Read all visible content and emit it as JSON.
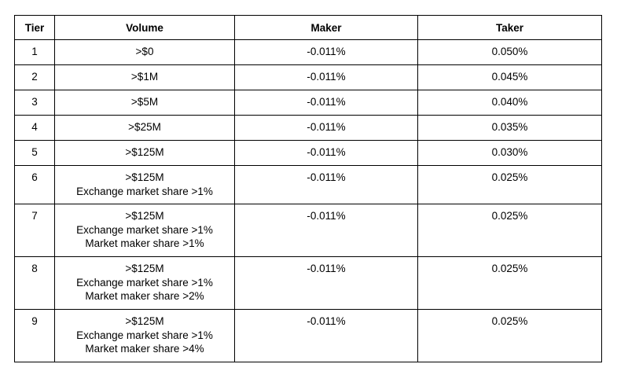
{
  "table": {
    "headers": [
      "Tier",
      "Volume",
      "Maker",
      "Taker"
    ],
    "rows": [
      {
        "tier": "1",
        "volume": [
          ">$0"
        ],
        "maker": "-0.011%",
        "taker": "0.050%"
      },
      {
        "tier": "2",
        "volume": [
          ">$1M"
        ],
        "maker": "-0.011%",
        "taker": "0.045%"
      },
      {
        "tier": "3",
        "volume": [
          ">$5M"
        ],
        "maker": "-0.011%",
        "taker": "0.040%"
      },
      {
        "tier": "4",
        "volume": [
          ">$25M"
        ],
        "maker": "-0.011%",
        "taker": "0.035%"
      },
      {
        "tier": "5",
        "volume": [
          ">$125M"
        ],
        "maker": "-0.011%",
        "taker": "0.030%"
      },
      {
        "tier": "6",
        "volume": [
          ">$125M",
          "Exchange market share >1%"
        ],
        "maker": "-0.011%",
        "taker": "0.025%"
      },
      {
        "tier": "7",
        "volume": [
          ">$125M",
          "Exchange market share >1%",
          "Market maker share >1%"
        ],
        "maker": "-0.011%",
        "taker": "0.025%"
      },
      {
        "tier": "8",
        "volume": [
          ">$125M",
          "Exchange market share >1%",
          "Market maker share >2%"
        ],
        "maker": "-0.011%",
        "taker": "0.025%"
      },
      {
        "tier": "9",
        "volume": [
          ">$125M",
          "Exchange market share >1%",
          "Market maker share >4%"
        ],
        "maker": "-0.011%",
        "taker": "0.025%"
      }
    ]
  }
}
